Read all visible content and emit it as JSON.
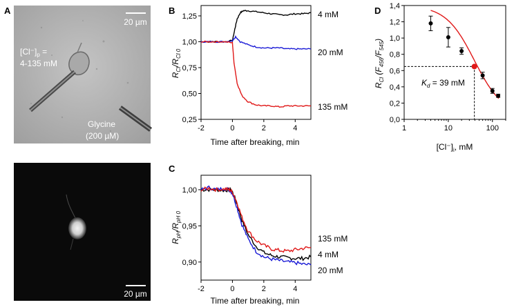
{
  "panel_labels": {
    "a": "A",
    "b": "B",
    "c": "C",
    "d": "D"
  },
  "panelA": {
    "scale_top": "20 µm",
    "scale_bottom": "20 µm",
    "cl_label_main": "[Cl⁻]",
    "cl_label_sub": "p",
    "cl_label_eq": "=",
    "cl_range": "4-135 mM",
    "glycine": "Glycine",
    "glycine_conc": "(200 µM)"
  },
  "colors": {
    "c4": "#000000",
    "c20": "#1a1ad6",
    "c135": "#e01818",
    "fit": "#e01818"
  },
  "chart_data": [
    {
      "id": "B",
      "type": "line",
      "xlabel": "Time after breaking, min",
      "ylabel": "R_Cl / R_Cl 0",
      "ylabel_main": "R",
      "ylabel_sub": "Cl",
      "ylabel_den_main": "R",
      "ylabel_den_sub": "Cl 0",
      "xlim": [
        -2,
        5
      ],
      "ylim": [
        0.25,
        1.35
      ],
      "xticks": [
        -2,
        0,
        2,
        4
      ],
      "yticks": [
        0.25,
        0.5,
        0.75,
        1.0,
        1.25
      ],
      "ytick_labels": [
        "0,25",
        "0,50",
        "0,75",
        "1,00",
        "1,25"
      ],
      "series": [
        {
          "name": "4 mM",
          "color": "#000000",
          "x": [
            -2,
            -1.5,
            -1,
            -0.5,
            0,
            0.15,
            0.3,
            0.5,
            0.7,
            1,
            1.5,
            2,
            2.5,
            3,
            3.5,
            4,
            4.5,
            5
          ],
          "y": [
            1.0,
            1.0,
            1.0,
            1.0,
            1.01,
            1.12,
            1.22,
            1.28,
            1.3,
            1.3,
            1.29,
            1.28,
            1.27,
            1.26,
            1.26,
            1.27,
            1.27,
            1.28
          ]
        },
        {
          "name": "20 mM",
          "color": "#1a1ad6",
          "x": [
            -2,
            -1.5,
            -1,
            -0.5,
            0,
            0.2,
            0.5,
            1,
            1.5,
            2,
            2.5,
            3,
            3.5,
            4,
            4.5,
            5
          ],
          "y": [
            1.0,
            1.0,
            1.0,
            1.0,
            1.01,
            1.05,
            1.0,
            0.97,
            0.95,
            0.94,
            0.94,
            0.94,
            0.93,
            0.93,
            0.93,
            0.93
          ]
        },
        {
          "name": "135 mM",
          "color": "#e01818",
          "x": [
            -2,
            -1.5,
            -1,
            -0.5,
            0,
            0.1,
            0.3,
            0.6,
            1,
            1.5,
            2,
            2.5,
            3,
            3.5,
            4,
            4.5,
            5
          ],
          "y": [
            1.0,
            1.0,
            1.0,
            1.0,
            0.99,
            0.8,
            0.6,
            0.48,
            0.42,
            0.39,
            0.38,
            0.38,
            0.37,
            0.38,
            0.38,
            0.38,
            0.38
          ]
        }
      ],
      "labels": [
        "4 mM",
        "20 mM",
        "135 mM"
      ]
    },
    {
      "id": "C",
      "type": "line",
      "xlabel": "Time after breaking, min",
      "ylabel": "R_pH / R_pH 0",
      "ylabel_main": "R",
      "ylabel_sub": "pH",
      "ylabel_den_main": "R",
      "ylabel_den_sub": "pH 0",
      "xlim": [
        -2,
        5
      ],
      "ylim": [
        0.875,
        1.02
      ],
      "xticks": [
        -2,
        0,
        2,
        4
      ],
      "yticks": [
        0.9,
        0.95,
        1.0
      ],
      "ytick_labels": [
        "0,90",
        "0,95",
        "1,00"
      ],
      "series": [
        {
          "name": "4 mM",
          "color": "#000000",
          "x": [
            -2,
            -1.5,
            -1,
            -0.5,
            -0.2,
            0,
            0.3,
            0.6,
            1,
            1.5,
            2,
            2.5,
            3,
            3.5,
            4,
            4.5,
            5
          ],
          "y": [
            1.0,
            1.0,
            1.0,
            0.999,
            1.0,
            0.997,
            0.98,
            0.958,
            0.938,
            0.922,
            0.913,
            0.909,
            0.907,
            0.906,
            0.905,
            0.905,
            0.907
          ]
        },
        {
          "name": "20 mM",
          "color": "#1a1ad6",
          "x": [
            -2,
            -1.5,
            -1,
            -0.5,
            -0.2,
            0,
            0.3,
            0.6,
            1,
            1.5,
            2,
            2.5,
            3,
            3.5,
            4,
            4.5,
            5
          ],
          "y": [
            1.0,
            1.003,
            1.0,
            1.002,
            1.0,
            0.995,
            0.975,
            0.952,
            0.932,
            0.915,
            0.907,
            0.904,
            0.902,
            0.9,
            0.899,
            0.897,
            0.896
          ]
        },
        {
          "name": "135 mM",
          "color": "#e01818",
          "x": [
            -2,
            -1.5,
            -1,
            -0.5,
            -0.2,
            0,
            0.3,
            0.6,
            1,
            1.5,
            2,
            2.5,
            3,
            3.5,
            4,
            4.5,
            5
          ],
          "y": [
            1.0,
            1.002,
            1.0,
            1.001,
            1.0,
            0.997,
            0.982,
            0.962,
            0.943,
            0.93,
            0.923,
            0.918,
            0.916,
            0.915,
            0.917,
            0.919,
            0.92
          ]
        }
      ],
      "labels": [
        "135 mM",
        "4 mM",
        "20 mM"
      ]
    },
    {
      "id": "D",
      "type": "scatter",
      "xscale": "log",
      "xlabel": "[Cl⁻]ᵢ, mM",
      "xlabel_main": "[Cl⁻]",
      "xlabel_sub": "i",
      "xlabel_rest": ", mM",
      "ylabel": "R_Cl (F456/F545)",
      "ylabel_main": "R",
      "ylabel_sub": "Cl",
      "ylabel_paren": "(F",
      "ylabel_s1": "456",
      "ylabel_mid": "/F",
      "ylabel_s2": "545",
      "ylabel_close": ")",
      "xlim": [
        1,
        200
      ],
      "ylim": [
        0.0,
        1.4
      ],
      "xticks": [
        1,
        10,
        100
      ],
      "xtick_labels": [
        "1",
        "10",
        "100"
      ],
      "yticks": [
        0.0,
        0.2,
        0.4,
        0.6,
        0.8,
        1.0,
        1.2,
        1.4
      ],
      "ytick_labels": [
        "0,0",
        "0,2",
        "0,4",
        "0,6",
        "0,8",
        "1,0",
        "1,2",
        "1,4"
      ],
      "points": [
        {
          "x": 4,
          "y": 1.18,
          "err": 0.09
        },
        {
          "x": 10,
          "y": 1.01,
          "err": 0.12
        },
        {
          "x": 20,
          "y": 0.84,
          "err": 0.04
        },
        {
          "x": 60,
          "y": 0.54,
          "err": 0.04
        },
        {
          "x": 100,
          "y": 0.35,
          "err": 0.03
        },
        {
          "x": 135,
          "y": 0.29,
          "err": 0.02
        }
      ],
      "kd_point": {
        "x": 39,
        "y": 0.65
      },
      "kd_label_main": "K",
      "kd_label_sub": "d",
      "kd_label_rest": " = 39 mM",
      "fit": {
        "top": 1.4,
        "bottom": 0.05,
        "kd": 39,
        "hill": 1.35
      }
    }
  ]
}
